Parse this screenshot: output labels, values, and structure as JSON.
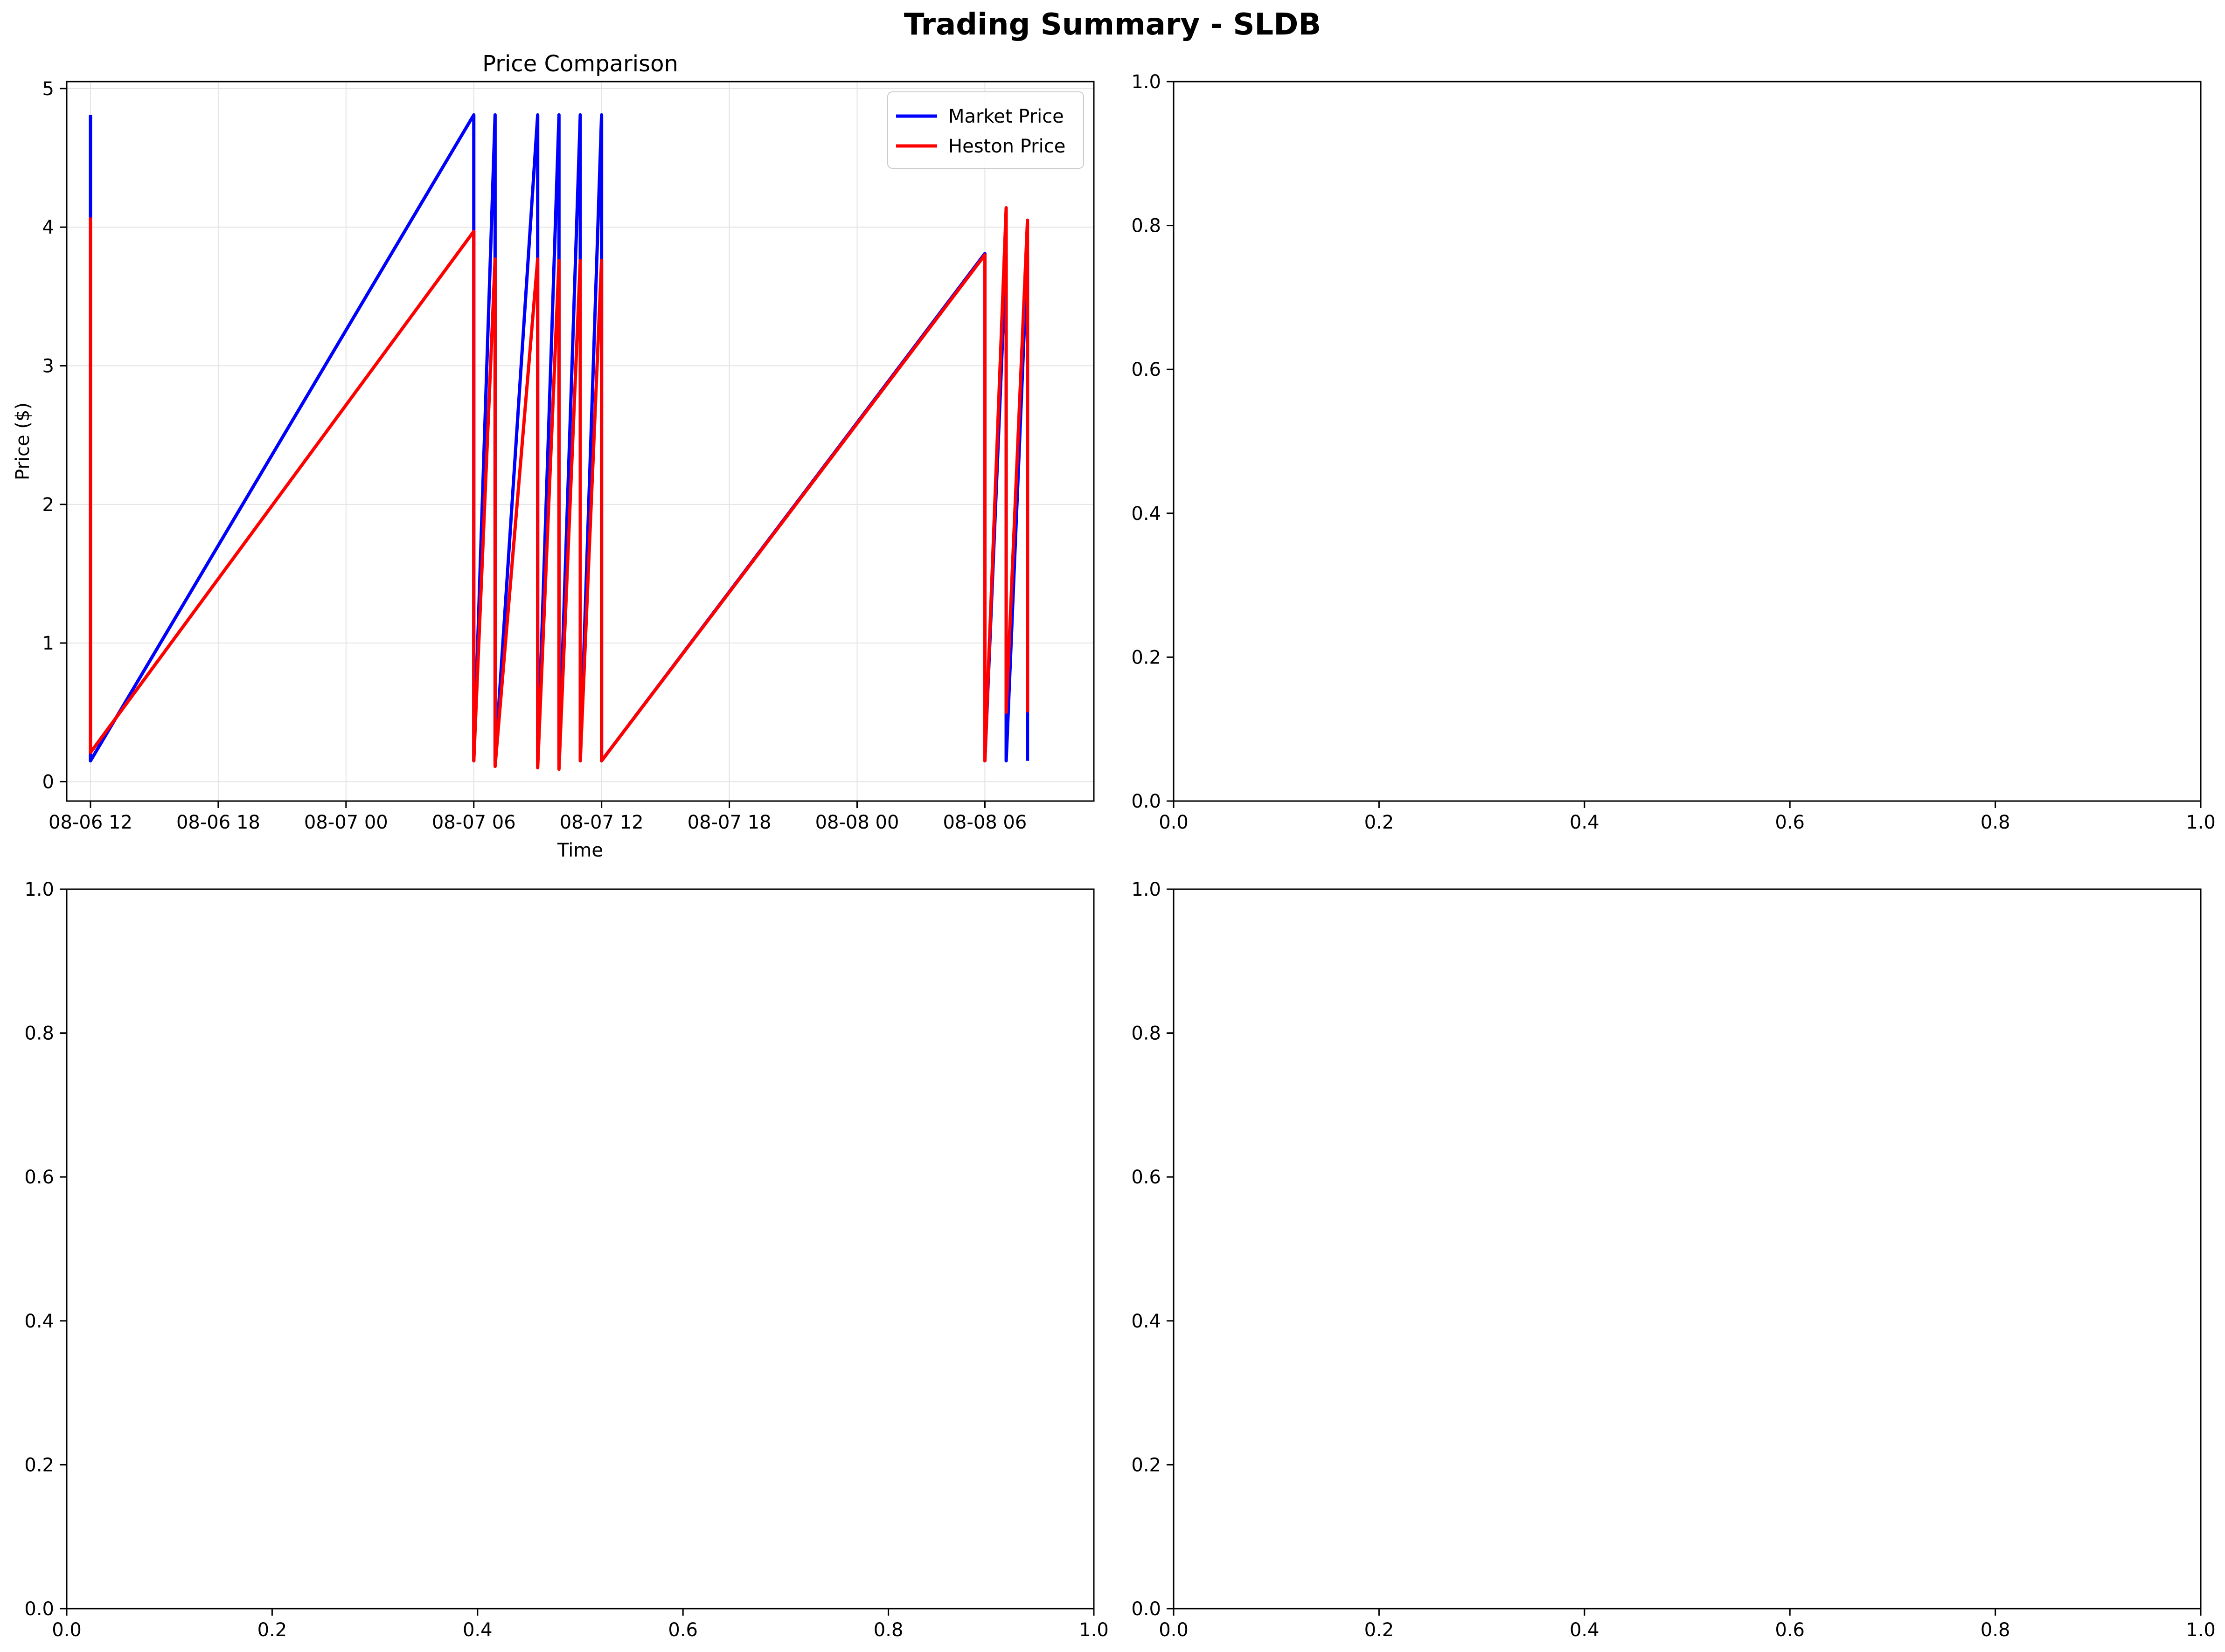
{
  "figure": {
    "title": "Trading Summary - SLDB"
  },
  "chart_data": [
    {
      "type": "line",
      "title": "Price Comparison",
      "xlabel": "Time",
      "ylabel": "Price ($)",
      "x_is_datetime": true,
      "xlim": [
        "2025-08-06T10:53",
        "2025-08-08T11:07"
      ],
      "ylim": [
        -0.14,
        5.05
      ],
      "xticks": [
        "2025-08-06T12:00",
        "2025-08-06T18:00",
        "2025-08-07T00:00",
        "2025-08-07T06:00",
        "2025-08-07T12:00",
        "2025-08-07T18:00",
        "2025-08-08T00:00",
        "2025-08-08T06:00"
      ],
      "xtick_labels": [
        "08-06 12",
        "08-06 18",
        "08-07 00",
        "08-07 06",
        "08-07 12",
        "08-07 18",
        "08-08 00",
        "08-08 06"
      ],
      "yticks": [
        0,
        1,
        2,
        3,
        4,
        5
      ],
      "ytick_labels": [
        "0",
        "1",
        "2",
        "3",
        "4",
        "5"
      ],
      "grid": true,
      "legend_position": "upper right",
      "series": [
        {
          "name": "Market Price",
          "color": "#0000ff",
          "points": [
            [
              "2025-08-06T12:00",
              4.81
            ],
            [
              "2025-08-06T12:00",
              0.15
            ],
            [
              "2025-08-07T06:00",
              4.81
            ],
            [
              "2025-08-07T06:00",
              0.15
            ],
            [
              "2025-08-07T07:00",
              4.81
            ],
            [
              "2025-08-07T07:00",
              0.15
            ],
            [
              "2025-08-07T09:00",
              4.81
            ],
            [
              "2025-08-07T09:00",
              0.15
            ],
            [
              "2025-08-07T10:00",
              4.81
            ],
            [
              "2025-08-07T10:00",
              0.15
            ],
            [
              "2025-08-07T11:00",
              4.81
            ],
            [
              "2025-08-07T11:00",
              0.15
            ],
            [
              "2025-08-07T12:00",
              4.81
            ],
            [
              "2025-08-07T12:00",
              0.15
            ],
            [
              "2025-08-08T06:00",
              3.81
            ],
            [
              "2025-08-08T06:00",
              0.15
            ],
            [
              "2025-08-08T07:00",
              3.81
            ],
            [
              "2025-08-08T07:00",
              0.15
            ],
            [
              "2025-08-08T08:00",
              3.81
            ],
            [
              "2025-08-08T08:00",
              0.15
            ]
          ]
        },
        {
          "name": "Heston Price",
          "color": "#ff0000",
          "points": [
            [
              "2025-08-06T12:00",
              4.07
            ],
            [
              "2025-08-06T12:00",
              0.21
            ],
            [
              "2025-08-07T06:00",
              3.97
            ],
            [
              "2025-08-07T06:00",
              0.15
            ],
            [
              "2025-08-07T07:00",
              3.77
            ],
            [
              "2025-08-07T07:00",
              0.11
            ],
            [
              "2025-08-07T09:00",
              3.77
            ],
            [
              "2025-08-07T09:00",
              0.1
            ],
            [
              "2025-08-07T10:00",
              3.76
            ],
            [
              "2025-08-07T10:00",
              0.09
            ],
            [
              "2025-08-07T11:00",
              3.76
            ],
            [
              "2025-08-07T11:00",
              0.15
            ],
            [
              "2025-08-07T12:00",
              3.76
            ],
            [
              "2025-08-07T12:00",
              0.15
            ],
            [
              "2025-08-08T06:00",
              3.8
            ],
            [
              "2025-08-08T06:00",
              0.15
            ],
            [
              "2025-08-08T07:00",
              4.14
            ],
            [
              "2025-08-08T07:00",
              0.5
            ],
            [
              "2025-08-08T08:00",
              4.05
            ],
            [
              "2025-08-08T08:00",
              0.5
            ]
          ]
        }
      ]
    },
    {
      "type": "line",
      "title": "",
      "xlim": [
        0,
        1
      ],
      "ylim": [
        0,
        1
      ],
      "xticks": [
        0,
        0.2,
        0.4,
        0.6,
        0.8,
        1
      ],
      "xtick_labels": [
        "0.0",
        "0.2",
        "0.4",
        "0.6",
        "0.8",
        "1.0"
      ],
      "yticks": [
        0,
        0.2,
        0.4,
        0.6,
        0.8,
        1
      ],
      "ytick_labels": [
        "0.0",
        "0.2",
        "0.4",
        "0.6",
        "0.8",
        "1.0"
      ],
      "grid": false,
      "series": []
    },
    {
      "type": "line",
      "title": "",
      "xlim": [
        0,
        1
      ],
      "ylim": [
        0,
        1
      ],
      "xticks": [
        0,
        0.2,
        0.4,
        0.6,
        0.8,
        1
      ],
      "xtick_labels": [
        "0.0",
        "0.2",
        "0.4",
        "0.6",
        "0.8",
        "1.0"
      ],
      "yticks": [
        0,
        0.2,
        0.4,
        0.6,
        0.8,
        1
      ],
      "ytick_labels": [
        "0.0",
        "0.2",
        "0.4",
        "0.6",
        "0.8",
        "1.0"
      ],
      "grid": false,
      "series": []
    },
    {
      "type": "line",
      "title": "",
      "xlim": [
        0,
        1
      ],
      "ylim": [
        0,
        1
      ],
      "xticks": [
        0,
        0.2,
        0.4,
        0.6,
        0.8,
        1
      ],
      "xtick_labels": [
        "0.0",
        "0.2",
        "0.4",
        "0.6",
        "0.8",
        "1.0"
      ],
      "yticks": [
        0,
        0.2,
        0.4,
        0.6,
        0.8,
        1
      ],
      "ytick_labels": [
        "0.0",
        "0.2",
        "0.4",
        "0.6",
        "0.8",
        "1.0"
      ],
      "grid": false,
      "series": []
    }
  ]
}
